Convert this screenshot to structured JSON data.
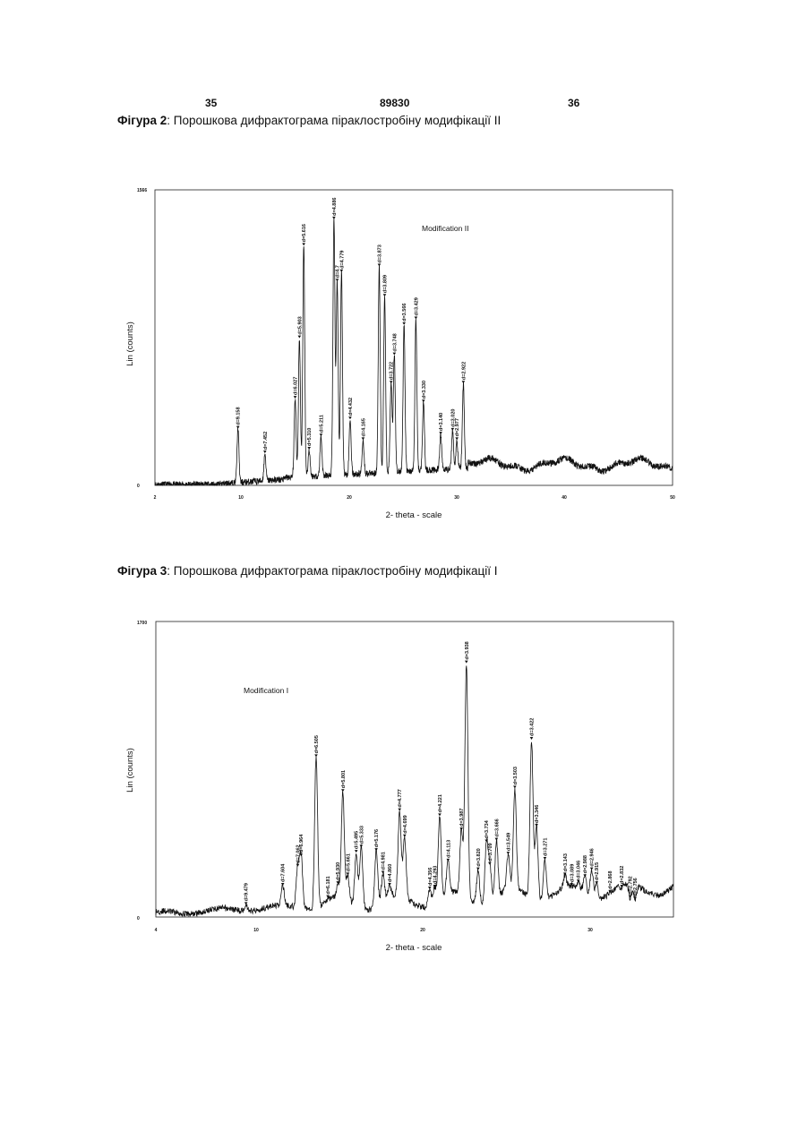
{
  "page": {
    "left_number": "35",
    "center_number": "89830",
    "right_number": "36"
  },
  "figure2": {
    "label": "Фігура 2",
    "caption": ": Порошкова дифрактограма піраклостробіну модифікації II"
  },
  "figure3": {
    "label": "Фігура 3",
    "caption": ": Порошкова дифрактограма піраклостробіну модифікації I"
  },
  "chart_data": [
    {
      "type": "line",
      "title": "",
      "annotation": "Modification II",
      "xlabel": "2- theta - scale",
      "ylabel": "Lin (counts)",
      "xlim": [
        2,
        50
      ],
      "ylim": [
        0,
        1566
      ],
      "xticks": [
        "2",
        "10",
        "20",
        "30",
        "40",
        "50"
      ],
      "yticks": [
        "0",
        "1566"
      ],
      "grid": false,
      "peaks": [
        {
          "x": 9.7,
          "y": 300,
          "label": "d=9.158"
        },
        {
          "x": 12.2,
          "y": 170,
          "label": "d=7.452"
        },
        {
          "x": 15.0,
          "y": 460,
          "label": "d=6.027"
        },
        {
          "x": 15.4,
          "y": 780,
          "label": "d=5.903"
        },
        {
          "x": 15.8,
          "y": 1270,
          "label": "d=5.616"
        },
        {
          "x": 16.3,
          "y": 190,
          "label": "d=5.310"
        },
        {
          "x": 17.4,
          "y": 260,
          "label": "d=5.211"
        },
        {
          "x": 18.6,
          "y": 1410,
          "label": "d=4.886"
        },
        {
          "x": 18.9,
          "y": 1080,
          "label": "d=4.7"
        },
        {
          "x": 19.3,
          "y": 1130,
          "label": "d=4.779"
        },
        {
          "x": 20.1,
          "y": 350,
          "label": "d=4.432"
        },
        {
          "x": 21.3,
          "y": 240,
          "label": "d=4.165"
        },
        {
          "x": 22.8,
          "y": 1160,
          "label": "d=3.873"
        },
        {
          "x": 23.3,
          "y": 1000,
          "label": "d=3.809"
        },
        {
          "x": 23.9,
          "y": 540,
          "label": "d=3.722"
        },
        {
          "x": 24.2,
          "y": 690,
          "label": "d=3.748"
        },
        {
          "x": 25.1,
          "y": 850,
          "label": "d=3.566"
        },
        {
          "x": 26.2,
          "y": 880,
          "label": "d=3.429"
        },
        {
          "x": 26.9,
          "y": 440,
          "label": "d=3.330"
        },
        {
          "x": 28.5,
          "y": 270,
          "label": "d=3.140"
        },
        {
          "x": 29.6,
          "y": 290,
          "label": "d=3.020"
        },
        {
          "x": 30.0,
          "y": 240,
          "label": "d=2.977"
        },
        {
          "x": 30.6,
          "y": 540,
          "label": "d=2.922"
        }
      ]
    },
    {
      "type": "line",
      "title": "",
      "annotation": "Modification I",
      "xlabel": "2- theta - scale",
      "ylabel": "Lin (counts)",
      "xlim": [
        4,
        35
      ],
      "ylim": [
        0,
        1700
      ],
      "xticks": [
        "4",
        "10",
        "20",
        "30"
      ],
      "yticks": [
        "0",
        "1700"
      ],
      "grid": false,
      "peaks": [
        {
          "x": 9.4,
          "y": 70,
          "label": "d=9.479"
        },
        {
          "x": 11.6,
          "y": 180,
          "label": "d=7.604"
        },
        {
          "x": 12.5,
          "y": 290,
          "label": "d=7.062"
        },
        {
          "x": 12.7,
          "y": 350,
          "label": "d=6.964"
        },
        {
          "x": 13.6,
          "y": 920,
          "label": "d=6.505"
        },
        {
          "x": 14.3,
          "y": 110,
          "label": "d=6.181"
        },
        {
          "x": 14.9,
          "y": 190,
          "label": "d=5.930"
        },
        {
          "x": 15.2,
          "y": 720,
          "label": "d=5.801"
        },
        {
          "x": 15.5,
          "y": 240,
          "label": "d=5.661"
        },
        {
          "x": 16.0,
          "y": 370,
          "label": "d=5.495"
        },
        {
          "x": 16.3,
          "y": 400,
          "label": "d=5.333"
        },
        {
          "x": 17.2,
          "y": 380,
          "label": "d=5.176"
        },
        {
          "x": 17.6,
          "y": 250,
          "label": "d=4.981"
        },
        {
          "x": 18.0,
          "y": 180,
          "label": "d=4.860"
        },
        {
          "x": 18.6,
          "y": 610,
          "label": "d=4.777"
        },
        {
          "x": 18.9,
          "y": 460,
          "label": "d=4.699"
        },
        {
          "x": 20.4,
          "y": 160,
          "label": "d=4.356"
        },
        {
          "x": 20.7,
          "y": 170,
          "label": "d=4.293"
        },
        {
          "x": 21.0,
          "y": 580,
          "label": "d=4.221"
        },
        {
          "x": 21.5,
          "y": 320,
          "label": "d=4.113"
        },
        {
          "x": 22.3,
          "y": 500,
          "label": "d=3.987"
        },
        {
          "x": 22.6,
          "y": 1460,
          "label": "d=3.938"
        },
        {
          "x": 23.3,
          "y": 270,
          "label": "d=3.820"
        },
        {
          "x": 23.8,
          "y": 430,
          "label": "d=3.734"
        },
        {
          "x": 24.0,
          "y": 300,
          "label": "d=3.709"
        },
        {
          "x": 24.4,
          "y": 440,
          "label": "d=3.666"
        },
        {
          "x": 25.1,
          "y": 360,
          "label": "d=3.549"
        },
        {
          "x": 25.5,
          "y": 740,
          "label": "d=3.503"
        },
        {
          "x": 26.5,
          "y": 1020,
          "label": "d=3.422"
        },
        {
          "x": 26.8,
          "y": 520,
          "label": "d=3.346"
        },
        {
          "x": 27.3,
          "y": 330,
          "label": "d=3.271"
        },
        {
          "x": 28.5,
          "y": 240,
          "label": "d=3.143"
        },
        {
          "x": 28.9,
          "y": 180,
          "label": "d=3.089"
        },
        {
          "x": 29.3,
          "y": 200,
          "label": "d=3.046"
        },
        {
          "x": 29.7,
          "y": 230,
          "label": "d=2.988"
        },
        {
          "x": 30.1,
          "y": 270,
          "label": "d=2.946"
        },
        {
          "x": 30.4,
          "y": 190,
          "label": "d=2.915"
        },
        {
          "x": 31.2,
          "y": 140,
          "label": "d=2.868"
        },
        {
          "x": 31.9,
          "y": 170,
          "label": "d=2.832"
        },
        {
          "x": 32.4,
          "y": 110,
          "label": "d=2.792"
        },
        {
          "x": 32.7,
          "y": 100,
          "label": "d=2.756"
        }
      ]
    }
  ]
}
